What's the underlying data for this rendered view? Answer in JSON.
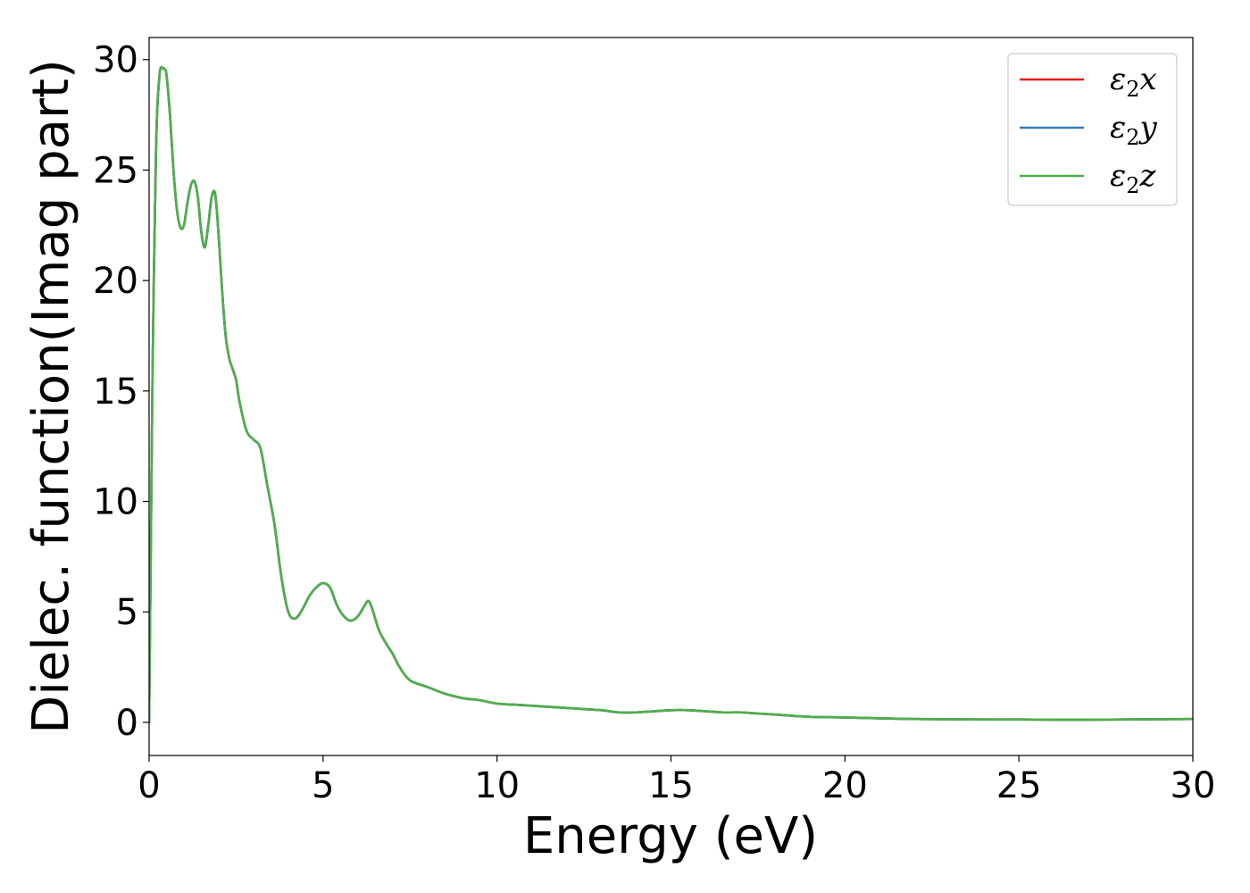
{
  "chart_data": {
    "type": "line",
    "xlabel": "Energy (eV)",
    "ylabel": "Dielec. function(Imag part)",
    "xlim": [
      0,
      30
    ],
    "ylim": [
      -1.5,
      31
    ],
    "xticks": [
      0,
      5,
      10,
      15,
      20,
      25,
      30
    ],
    "yticks": [
      0,
      5,
      10,
      15,
      20,
      25,
      30
    ],
    "grid": false,
    "legend_position": "top-right",
    "x": [
      0,
      0.05,
      0.1,
      0.2,
      0.3,
      0.4,
      0.45,
      0.5,
      0.6,
      0.7,
      0.8,
      0.9,
      1.0,
      1.1,
      1.2,
      1.3,
      1.4,
      1.5,
      1.6,
      1.7,
      1.8,
      1.9,
      2.0,
      2.1,
      2.2,
      2.3,
      2.4,
      2.5,
      2.6,
      2.8,
      3.0,
      3.2,
      3.4,
      3.6,
      3.8,
      4.0,
      4.2,
      4.4,
      4.6,
      4.8,
      5.0,
      5.2,
      5.4,
      5.6,
      5.8,
      6.0,
      6.2,
      6.3,
      6.4,
      6.6,
      6.8,
      7.0,
      7.2,
      7.5,
      8.0,
      8.5,
      9.0,
      9.5,
      10.0,
      10.5,
      11.0,
      11.5,
      12.0,
      12.5,
      13.0,
      13.5,
      14.0,
      14.5,
      15.0,
      15.5,
      16.0,
      16.5,
      17.0,
      17.5,
      18.0,
      19.0,
      20.0,
      21.0,
      22.0,
      23.0,
      24.0,
      25.0,
      26.0,
      27.0,
      28.0,
      29.0,
      30.0
    ],
    "series": [
      {
        "name": "ε2x",
        "legend_main": "ε",
        "legend_sub": "2",
        "legend_var": "x",
        "color": "#e41a1c",
        "values": [
          0,
          8,
          16,
          26,
          29.3,
          29.6,
          29.55,
          29.3,
          27.5,
          25.0,
          23.2,
          22.4,
          22.5,
          23.5,
          24.3,
          24.5,
          23.8,
          22.2,
          21.5,
          22.5,
          23.8,
          23.9,
          22.0,
          19.5,
          17.5,
          16.5,
          16.0,
          15.5,
          14.5,
          13.2,
          12.8,
          12.4,
          10.7,
          9.0,
          6.6,
          5.0,
          4.7,
          5.1,
          5.7,
          6.1,
          6.3,
          6.1,
          5.3,
          4.8,
          4.6,
          4.8,
          5.3,
          5.5,
          5.2,
          4.2,
          3.6,
          3.1,
          2.5,
          1.9,
          1.6,
          1.3,
          1.1,
          1.0,
          0.85,
          0.8,
          0.75,
          0.7,
          0.65,
          0.6,
          0.55,
          0.45,
          0.45,
          0.5,
          0.55,
          0.55,
          0.5,
          0.45,
          0.45,
          0.4,
          0.35,
          0.25,
          0.22,
          0.18,
          0.15,
          0.14,
          0.13,
          0.13,
          0.12,
          0.12,
          0.13,
          0.14,
          0.15
        ]
      },
      {
        "name": "ε2y",
        "legend_main": "ε",
        "legend_sub": "2",
        "legend_var": "y",
        "color": "#377eb8",
        "values": [
          0,
          8,
          16,
          26,
          29.3,
          29.6,
          29.55,
          29.3,
          27.5,
          25.0,
          23.2,
          22.4,
          22.5,
          23.5,
          24.3,
          24.5,
          23.8,
          22.2,
          21.5,
          22.5,
          23.8,
          23.9,
          22.0,
          19.5,
          17.5,
          16.5,
          16.0,
          15.5,
          14.5,
          13.2,
          12.8,
          12.4,
          10.7,
          9.0,
          6.6,
          5.0,
          4.7,
          5.1,
          5.7,
          6.1,
          6.3,
          6.1,
          5.3,
          4.8,
          4.6,
          4.8,
          5.3,
          5.5,
          5.2,
          4.2,
          3.6,
          3.1,
          2.5,
          1.9,
          1.6,
          1.3,
          1.1,
          1.0,
          0.85,
          0.8,
          0.75,
          0.7,
          0.65,
          0.6,
          0.55,
          0.45,
          0.45,
          0.5,
          0.55,
          0.55,
          0.5,
          0.45,
          0.45,
          0.4,
          0.35,
          0.25,
          0.22,
          0.18,
          0.15,
          0.14,
          0.13,
          0.13,
          0.12,
          0.12,
          0.13,
          0.14,
          0.15
        ]
      },
      {
        "name": "ε2z",
        "legend_main": "ε",
        "legend_sub": "2",
        "legend_var": "z",
        "color": "#4daf4a",
        "values": [
          0,
          8,
          16,
          26,
          29.3,
          29.6,
          29.55,
          29.3,
          27.5,
          25.0,
          23.2,
          22.4,
          22.5,
          23.5,
          24.3,
          24.5,
          23.8,
          22.2,
          21.5,
          22.5,
          23.8,
          23.9,
          22.0,
          19.5,
          17.5,
          16.5,
          16.0,
          15.5,
          14.5,
          13.2,
          12.8,
          12.4,
          10.7,
          9.0,
          6.6,
          5.0,
          4.7,
          5.1,
          5.7,
          6.1,
          6.3,
          6.1,
          5.3,
          4.8,
          4.6,
          4.8,
          5.3,
          5.5,
          5.2,
          4.2,
          3.6,
          3.1,
          2.5,
          1.9,
          1.6,
          1.3,
          1.1,
          1.0,
          0.85,
          0.8,
          0.75,
          0.7,
          0.65,
          0.6,
          0.55,
          0.45,
          0.45,
          0.5,
          0.55,
          0.55,
          0.5,
          0.45,
          0.45,
          0.4,
          0.35,
          0.25,
          0.22,
          0.18,
          0.15,
          0.14,
          0.13,
          0.13,
          0.12,
          0.12,
          0.13,
          0.14,
          0.15
        ]
      }
    ]
  }
}
